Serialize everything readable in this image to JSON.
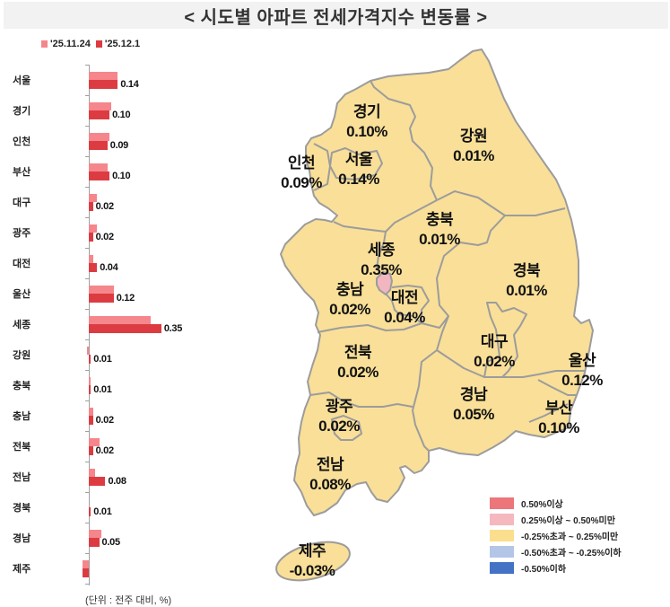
{
  "title": "< 시도별 아파트 전세가격지수 변동률 >",
  "chart_legend": [
    {
      "label": "'25.11.24",
      "color": "#f5868c"
    },
    {
      "label": "'25.12.1",
      "color": "#dc3c41"
    }
  ],
  "chart_data": {
    "type": "bar",
    "orientation": "horizontal",
    "title": "시도별 아파트 전세가격지수 변동률",
    "unit_note": "(단위 : 전주 대비, %)",
    "categories": [
      "서울",
      "경기",
      "인천",
      "부산",
      "대구",
      "광주",
      "대전",
      "울산",
      "세종",
      "강원",
      "충북",
      "충남",
      "전북",
      "전남",
      "경북",
      "경남",
      "제주"
    ],
    "series": [
      {
        "name": "'25.11.24",
        "color": "#f5868c",
        "values": [
          0.14,
          0.11,
          0.1,
          0.09,
          0.04,
          0.04,
          0.02,
          0.12,
          0.3,
          -0.01,
          0.01,
          0.02,
          0.05,
          0.03,
          0.0,
          0.06,
          -0.03
        ]
      },
      {
        "name": "'25.12.1",
        "color": "#dc3c41",
        "values": [
          0.14,
          0.1,
          0.09,
          0.1,
          0.02,
          0.02,
          0.04,
          0.12,
          0.35,
          0.01,
          0.01,
          0.02,
          0.02,
          0.08,
          0.01,
          0.05,
          -0.03
        ]
      }
    ],
    "value_labels": [
      "0.14",
      "0.10",
      "0.09",
      "0.10",
      "0.02",
      "0.02",
      "0.04",
      "0.12",
      "0.35",
      "0.01",
      "0.01",
      "0.02",
      "0.02",
      "0.08",
      "0.01",
      "0.05",
      "-0.03"
    ],
    "xlabel": "",
    "ylabel": "",
    "xlim": [
      -0.05,
      0.4
    ],
    "grid": false,
    "legend_position": "top-left"
  },
  "map": {
    "regions": [
      {
        "name": "경기",
        "value": "0.10%"
      },
      {
        "name": "강원",
        "value": "0.01%"
      },
      {
        "name": "인천",
        "value": "0.09%"
      },
      {
        "name": "서울",
        "value": "0.14%"
      },
      {
        "name": "충북",
        "value": "0.01%"
      },
      {
        "name": "세종",
        "value": "0.35%"
      },
      {
        "name": "경북",
        "value": "0.01%"
      },
      {
        "name": "충남",
        "value": "0.02%"
      },
      {
        "name": "대전",
        "value": "0.04%"
      },
      {
        "name": "대구",
        "value": "0.02%"
      },
      {
        "name": "울산",
        "value": "0.12%"
      },
      {
        "name": "전북",
        "value": "0.02%"
      },
      {
        "name": "광주",
        "value": "0.02%"
      },
      {
        "name": "경남",
        "value": "0.05%"
      },
      {
        "name": "부산",
        "value": "0.10%"
      },
      {
        "name": "전남",
        "value": "0.08%"
      },
      {
        "name": "제주",
        "value": "-0.03%"
      }
    ],
    "fill_default": "#f9df98",
    "fill_highlight": "#f2b6c0",
    "border_color": "#9c9c9c",
    "legend": [
      {
        "label": " 0.50%이상",
        "color": "#ec767a"
      },
      {
        "label": " 0.25%이상 ~ 0.50%미만",
        "color": "#f4b8be"
      },
      {
        "label": "-0.25%초과 ~ 0.25%미만",
        "color": "#fbdf8e"
      },
      {
        "label": "-0.50%초과 ~ -0.25%이하",
        "color": "#b4c6e8"
      },
      {
        "label": "-0.50%이하",
        "color": "#4472c4"
      }
    ]
  },
  "footnote": "(단위 : 전주 대비, %)"
}
